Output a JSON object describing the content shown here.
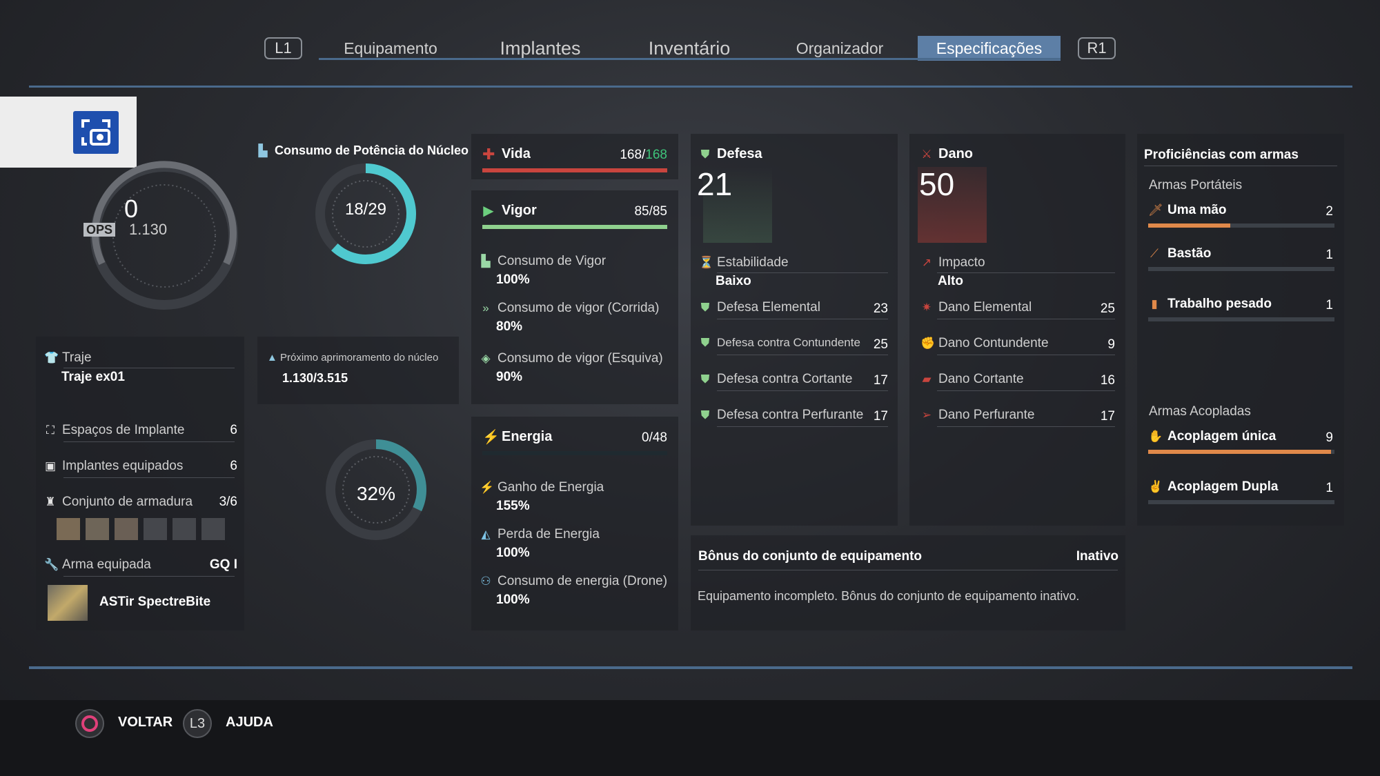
{
  "tabs": {
    "l1": "L1",
    "r1": "R1",
    "items": [
      {
        "label": "Equipamento"
      },
      {
        "label": "Implantes"
      },
      {
        "label": "Inventário"
      },
      {
        "label": "Organizador"
      },
      {
        "label": "Especificações"
      }
    ]
  },
  "ops": {
    "value": "0",
    "label": "OPS",
    "total": "1.130"
  },
  "core": {
    "title": "Consumo de Potência do Núcleo",
    "ratio": "18/29",
    "fill": 0.62,
    "next_label": "Próximo aprimoramento do núcleo",
    "next_value": "1.130/3.515",
    "percent": "32%",
    "percent_fill": 0.32
  },
  "suit": {
    "label": "Traje",
    "value": "Traje ex01",
    "implant_slots_label": "Espaços de Implante",
    "implant_slots": "6",
    "implants_equipped_label": "Implantes equipados",
    "implants_equipped": "6",
    "armor_set_label": "Conjunto de armadura",
    "armor_set": "3/6",
    "weapon_label": "Arma equipada",
    "weapon_grade": "GQ I",
    "weapon_name": "ASTir SpectreBite"
  },
  "vida": {
    "label": "Vida",
    "current": "168/",
    "max": "168",
    "fill": 1.0
  },
  "vigor": {
    "label": "Vigor",
    "value": "85/85",
    "fill": 1.0,
    "items": [
      {
        "label": "Consumo de Vigor",
        "value": "100%"
      },
      {
        "label": "Consumo de vigor (Corrida)",
        "value": "80%"
      },
      {
        "label": "Consumo de vigor (Esquiva)",
        "value": "90%"
      }
    ]
  },
  "energia": {
    "label": "Energia",
    "value": "0/48",
    "fill": 0.0,
    "items": [
      {
        "label": "Ganho de Energia",
        "value": "155%"
      },
      {
        "label": "Perda de Energia",
        "value": "100%"
      },
      {
        "label": "Consumo de energia (Drone)",
        "value": "100%"
      }
    ]
  },
  "defesa": {
    "label": "Defesa",
    "value": "21",
    "sub_label": "Estabilidade",
    "sub_value": "Baixo",
    "items": [
      {
        "label": "Defesa Elemental",
        "value": "23"
      },
      {
        "label": "Defesa contra Contundente",
        "value": "25"
      },
      {
        "label": "Defesa contra Cortante",
        "value": "17"
      },
      {
        "label": "Defesa contra Perfurante",
        "value": "17"
      }
    ]
  },
  "dano": {
    "label": "Dano",
    "value": "50",
    "sub_label": "Impacto",
    "sub_value": "Alto",
    "items": [
      {
        "label": "Dano Elemental",
        "value": "25"
      },
      {
        "label": "Dano Contundente",
        "value": "9"
      },
      {
        "label": "Dano Cortante",
        "value": "16"
      },
      {
        "label": "Dano Perfurante",
        "value": "17"
      }
    ]
  },
  "bonus": {
    "title": "Bônus do conjunto de equipamento",
    "status": "Inativo",
    "text": "Equipamento incompleto. Bônus do conjunto de equipamento inativo."
  },
  "prof": {
    "title": "Proficiências com armas",
    "group1": "Armas Portáteis",
    "group2": "Armas Acopladas",
    "items": [
      {
        "label": "Uma mão",
        "value": "2",
        "fill": 0.44
      },
      {
        "label": "Bastão",
        "value": "1",
        "fill": 0.0
      },
      {
        "label": "Trabalho pesado",
        "value": "1",
        "fill": 0.0
      },
      {
        "label": "Acoplagem única",
        "value": "9",
        "fill": 0.98
      },
      {
        "label": "Acoplagem Dupla",
        "value": "1",
        "fill": 0.0
      }
    ]
  },
  "footer": {
    "back": "VOLTAR",
    "help_key": "L3",
    "help": "AJUDA"
  },
  "colors": {
    "accent": "#5d7fa6",
    "cyan": "#4fc9cf",
    "green": "#3ec47a",
    "red": "#c9453e",
    "orange": "#e0894a"
  }
}
